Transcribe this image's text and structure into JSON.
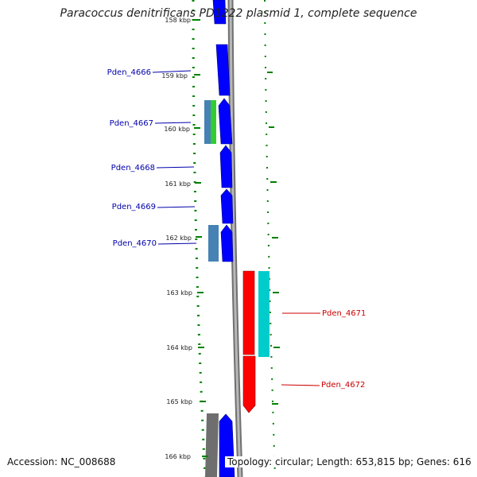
{
  "title": "Paracoccus denitrificans PD1222 plasmid 1, complete sequence",
  "accession_text": "Accession: NC_008688",
  "summary_text": "Topology: circular; Length: 653,815 bp; Genes: 616",
  "colors": {
    "forward_gene": "#0000ff",
    "reverse_gene": "#ff0000",
    "steelblue_feature": "#4682b4",
    "green_feature": "#33cc33",
    "cyan_feature": "#00cccc",
    "backbone": "#888888",
    "ticks": "#008000",
    "label_forward": "#0000aa",
    "label_reverse": "#cc0000"
  },
  "scale_ticks": [
    {
      "label": "158 kbp"
    },
    {
      "label": "159 kbp"
    },
    {
      "label": "160 kbp"
    },
    {
      "label": "161 kbp"
    },
    {
      "label": "162 kbp"
    },
    {
      "label": "163 kbp"
    },
    {
      "label": "164 kbp"
    },
    {
      "label": "165 kbp"
    },
    {
      "label": "166 kbp"
    }
  ],
  "genes": [
    {
      "name": "Pden_4666",
      "strand": "forward"
    },
    {
      "name": "Pden_4667",
      "strand": "forward"
    },
    {
      "name": "Pden_4668",
      "strand": "forward"
    },
    {
      "name": "Pden_4669",
      "strand": "forward"
    },
    {
      "name": "Pden_4670",
      "strand": "forward"
    },
    {
      "name": "Pden_4671",
      "strand": "reverse"
    },
    {
      "name": "Pden_4672",
      "strand": "reverse"
    }
  ]
}
